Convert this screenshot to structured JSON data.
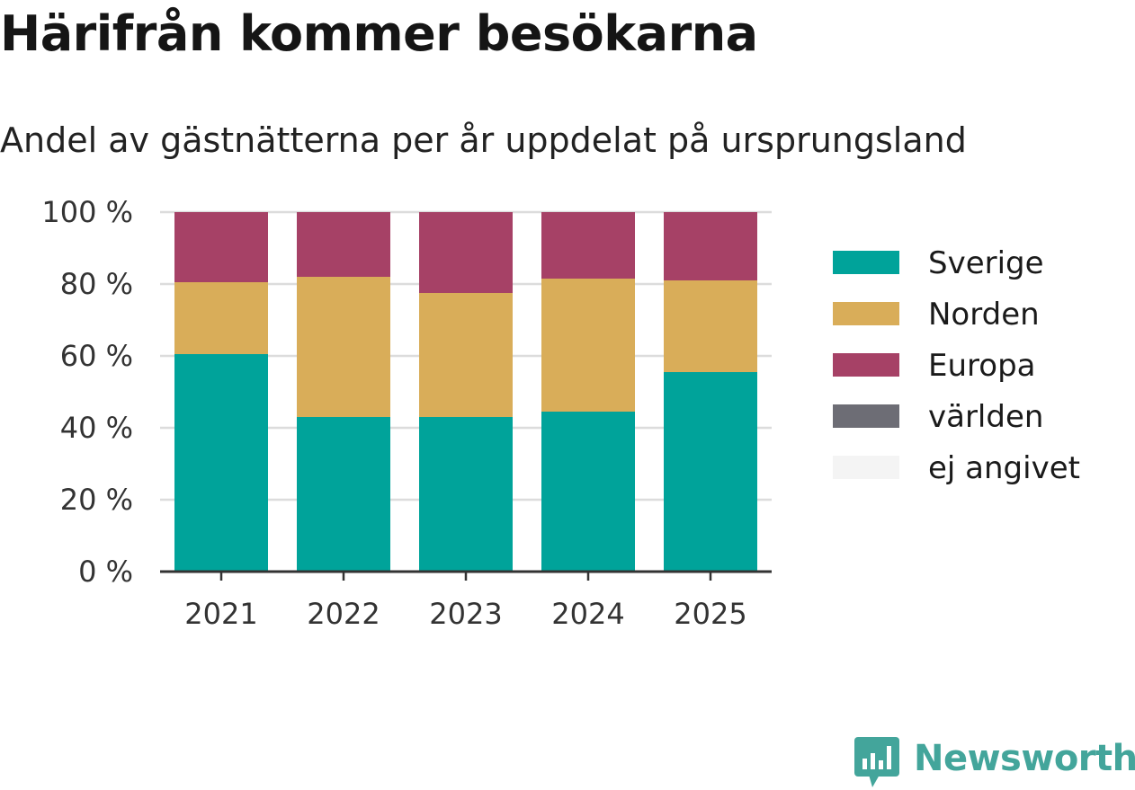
{
  "title": "Härifrån kommer besökarna",
  "subtitle": "Andel av gästnätterna per år uppdelat på ursprungsland",
  "brand": {
    "name": "Newsworthy",
    "color": "#43a59b",
    "icon": "newsworthy-logo-icon"
  },
  "chart_data": {
    "type": "bar",
    "stacked": true,
    "categories": [
      "2021",
      "2022",
      "2023",
      "2024",
      "2025"
    ],
    "series": [
      {
        "name": "Sverige",
        "color": "#00a39a",
        "values": [
          60.5,
          43,
          43,
          44.5,
          55.5
        ]
      },
      {
        "name": "Norden",
        "color": "#d9ad59",
        "values": [
          20,
          39,
          34.5,
          37,
          25.5
        ]
      },
      {
        "name": "Europa",
        "color": "#a64166",
        "values": [
          19.5,
          18,
          22.5,
          18.5,
          19
        ]
      },
      {
        "name": "världen",
        "color": "#6d6d75",
        "values": [
          0,
          0,
          0,
          0,
          0
        ]
      },
      {
        "name": "ej angivet",
        "color": "#f4f4f4",
        "values": [
          0,
          0,
          0,
          0,
          0
        ]
      }
    ],
    "y_ticks": [
      0,
      20,
      40,
      60,
      80,
      100
    ],
    "y_tick_labels": [
      "0 %",
      "20 %",
      "40 %",
      "60 %",
      "80 %",
      "100 %"
    ],
    "ylim": [
      0,
      100
    ],
    "xlabel": "",
    "ylabel": "",
    "grid": true,
    "legend_position": "right"
  }
}
